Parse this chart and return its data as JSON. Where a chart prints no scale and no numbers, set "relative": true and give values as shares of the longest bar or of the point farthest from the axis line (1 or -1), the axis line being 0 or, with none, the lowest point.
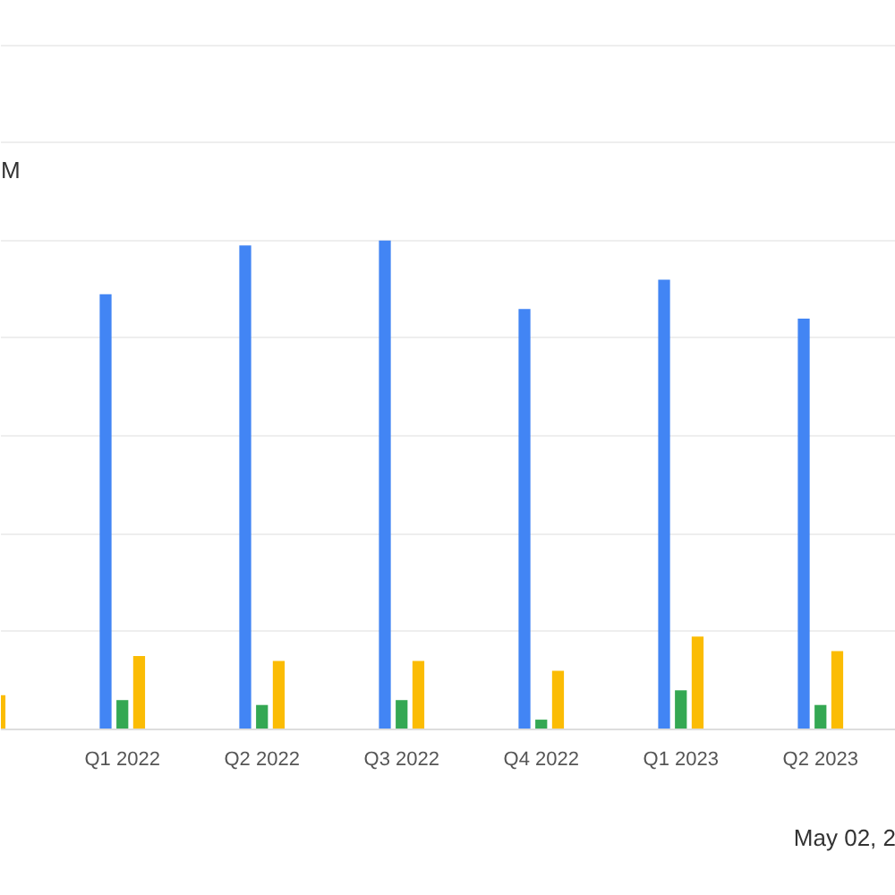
{
  "chart_data": {
    "type": "bar",
    "relative": true,
    "grid": "y",
    "categories": [
      null,
      "Q1 2022",
      "Q2 2022",
      "Q3 2022",
      "Q4 2022",
      "Q1 2023",
      "Q2 2023"
    ],
    "series": [
      {
        "color": "#4285f4",
        "values": [
          null,
          0.89,
          0.99,
          1.0,
          0.86,
          0.92,
          0.84
        ]
      },
      {
        "color": "#34a853",
        "values": [
          null,
          0.06,
          0.05,
          0.06,
          0.02,
          0.08,
          0.05
        ]
      },
      {
        "color": "#fbbc04",
        "values": [
          0.07,
          0.15,
          0.14,
          0.14,
          0.12,
          0.19,
          0.16
        ]
      }
    ],
    "annotations": [
      "M",
      "May 02, 2"
    ]
  }
}
